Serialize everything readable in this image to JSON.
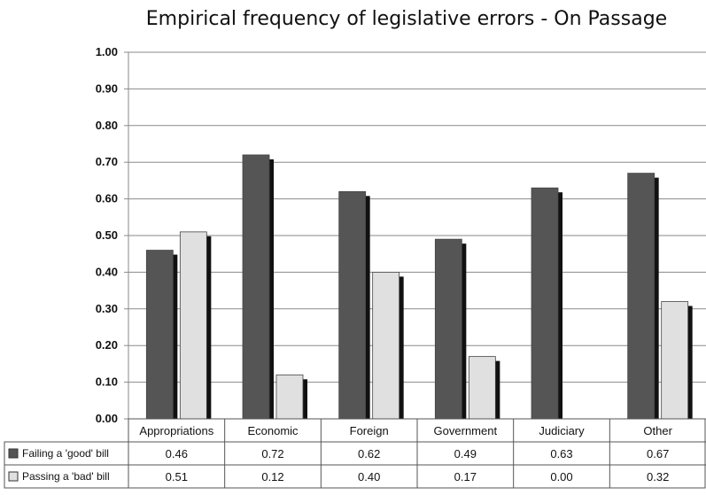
{
  "chart_data": {
    "type": "bar",
    "title": "Empirical frequency of legislative errors  - On Passage",
    "xlabel": "",
    "ylabel": "",
    "ylim": [
      0,
      1.0
    ],
    "y_ticks": [
      "0.00",
      "0.10",
      "0.20",
      "0.30",
      "0.40",
      "0.50",
      "0.60",
      "0.70",
      "0.80",
      "0.90",
      "1.00"
    ],
    "grid": "horizontal",
    "legend": "data-table",
    "categories": [
      "Appropriations",
      "Economic",
      "Foreign",
      "Government",
      "Judiciary",
      "Other"
    ],
    "series": [
      {
        "name": "Failing a 'good' bill",
        "color": "#555555",
        "values": [
          0.46,
          0.72,
          0.62,
          0.49,
          0.63,
          0.67
        ],
        "labels": [
          "0.46",
          "0.72",
          "0.62",
          "0.49",
          "0.63",
          "0.67"
        ]
      },
      {
        "name": "Passing a 'bad' bill",
        "color": "#e0e0e0",
        "values": [
          0.51,
          0.12,
          0.4,
          0.17,
          0.0,
          0.32
        ],
        "labels": [
          "0.51",
          "0.12",
          "0.40",
          "0.17",
          "0.00",
          "0.32"
        ]
      }
    ]
  }
}
